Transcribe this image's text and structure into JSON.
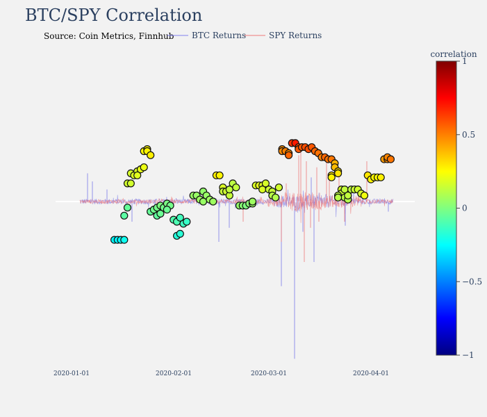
{
  "chart_data": {
    "type": "scatter",
    "title": "BTC/SPY Correlation",
    "annotation": "Source: Coin Metrics, Finnhub",
    "x_ticks": [
      "2020-01-01",
      "2020-02-01",
      "2020-03-01",
      "2020-04-01"
    ],
    "x_range": [
      "2019-12-26",
      "2020-04-10"
    ],
    "y_range": [
      -0.85,
      0.55
    ],
    "colorbar": {
      "title": "correlation",
      "min": -1,
      "max": 1,
      "ticks": [
        1,
        0.5,
        0,
        -0.5,
        -1
      ],
      "tick_labels": [
        "1",
        "0.5",
        "0",
        "−0.5",
        "−1"
      ],
      "colorscale": [
        "#000080",
        "#0000ff",
        "#0080ff",
        "#00ffff",
        "#80ff80",
        "#ffff00",
        "#ff8000",
        "#ff0000",
        "#800000"
      ]
    },
    "series": [
      {
        "name": "BTC Returns",
        "type": "line",
        "color": "#8080ee",
        "description": "high-frequency BTC returns, mostly within +/-0.03, spikes to about -0.78 on 2020-03-12"
      },
      {
        "name": "SPY Returns",
        "type": "line",
        "color": "#ee7a7a",
        "description": "high-frequency SPY returns, spikes up to about +0.28 and down to about -0.30 in March 2020"
      },
      {
        "name": "correlation",
        "type": "markers",
        "color_by": "value",
        "points": [
          [
            "2020-01-14",
            -0.19,
            -0.26
          ],
          [
            "2020-01-15",
            -0.19,
            -0.26
          ],
          [
            "2020-01-16",
            -0.19,
            -0.25
          ],
          [
            "2020-01-17",
            -0.19,
            -0.22
          ],
          [
            "2020-01-17",
            -0.07,
            -0.07
          ],
          [
            "2020-01-18",
            -0.03,
            -0.05
          ],
          [
            "2020-01-18",
            0.09,
            0.16
          ],
          [
            "2020-01-19",
            0.09,
            0.16
          ],
          [
            "2020-01-19",
            0.14,
            0.17
          ],
          [
            "2020-01-20",
            0.13,
            0.18
          ],
          [
            "2020-01-21",
            0.15,
            0.18
          ],
          [
            "2020-01-21",
            0.13,
            0.19
          ],
          [
            "2020-01-22",
            0.16,
            0.2
          ],
          [
            "2020-01-23",
            0.17,
            0.21
          ],
          [
            "2020-01-23",
            0.25,
            0.26
          ],
          [
            "2020-01-24",
            0.26,
            0.26
          ],
          [
            "2020-01-24",
            0.25,
            0.27
          ],
          [
            "2020-01-25",
            0.23,
            0.28
          ],
          [
            "2020-01-25",
            -0.05,
            -0.05
          ],
          [
            "2020-01-26",
            -0.04,
            -0.03
          ],
          [
            "2020-01-27",
            -0.03,
            -0.02
          ],
          [
            "2020-01-28",
            -0.02,
            0.0
          ],
          [
            "2020-01-27",
            -0.07,
            -0.06
          ],
          [
            "2020-01-28",
            -0.06,
            -0.04
          ],
          [
            "2020-01-29",
            -0.03,
            -0.02
          ],
          [
            "2020-01-30",
            -0.01,
            -0.01
          ],
          [
            "2020-01-31",
            -0.02,
            -0.02
          ],
          [
            "2020-01-30",
            -0.04,
            -0.04
          ],
          [
            "2020-02-01",
            -0.09,
            -0.09
          ],
          [
            "2020-02-02",
            -0.1,
            -0.1
          ],
          [
            "2020-02-03",
            -0.08,
            -0.12
          ],
          [
            "2020-02-02",
            -0.17,
            -0.18
          ],
          [
            "2020-02-03",
            -0.16,
            -0.17
          ],
          [
            "2020-02-04",
            -0.11,
            -0.13
          ],
          [
            "2020-02-05",
            -0.1,
            -0.14
          ],
          [
            "2020-02-07",
            0.03,
            0.05
          ],
          [
            "2020-02-08",
            0.03,
            0.05
          ],
          [
            "2020-02-09",
            0.01,
            0.06
          ],
          [
            "2020-02-10",
            0.0,
            0.05
          ],
          [
            "2020-02-10",
            0.05,
            0.04
          ],
          [
            "2020-02-11",
            0.03,
            0.05
          ],
          [
            "2020-02-12",
            0.01,
            0.06
          ],
          [
            "2020-02-13",
            0.0,
            0.06
          ],
          [
            "2020-02-14",
            0.13,
            0.28
          ],
          [
            "2020-02-15",
            0.13,
            0.27
          ],
          [
            "2020-02-16",
            0.07,
            0.18
          ],
          [
            "2020-02-16",
            0.05,
            0.14
          ],
          [
            "2020-02-17",
            0.05,
            0.15
          ],
          [
            "2020-02-18",
            0.03,
            0.14
          ],
          [
            "2020-02-18",
            0.06,
            0.13
          ],
          [
            "2020-02-19",
            0.09,
            0.12
          ],
          [
            "2020-02-20",
            0.07,
            0.13
          ],
          [
            "2020-02-21",
            -0.02,
            0.04
          ],
          [
            "2020-02-22",
            -0.02,
            0.02
          ],
          [
            "2020-02-23",
            -0.02,
            0.0
          ],
          [
            "2020-02-24",
            -0.01,
            0.02
          ],
          [
            "2020-02-25",
            -0.01,
            0.05
          ],
          [
            "2020-02-25",
            0.0,
            0.06
          ],
          [
            "2020-02-26",
            0.08,
            0.18
          ],
          [
            "2020-02-27",
            0.08,
            0.2
          ],
          [
            "2020-02-28",
            0.08,
            0.19
          ],
          [
            "2020-02-28",
            0.06,
            0.18
          ],
          [
            "2020-02-29",
            0.09,
            0.17
          ],
          [
            "2020-03-01",
            0.06,
            0.15
          ],
          [
            "2020-03-02",
            0.05,
            0.14
          ],
          [
            "2020-03-02",
            0.03,
            0.11
          ],
          [
            "2020-03-03",
            0.02,
            0.1
          ],
          [
            "2020-03-04",
            0.07,
            0.16
          ],
          [
            "2020-03-05",
            0.26,
            0.47
          ],
          [
            "2020-03-05",
            0.25,
            0.48
          ],
          [
            "2020-03-06",
            0.25,
            0.5
          ],
          [
            "2020-03-07",
            0.24,
            0.47
          ],
          [
            "2020-03-07",
            0.23,
            0.55
          ],
          [
            "2020-03-08",
            0.29,
            0.65
          ],
          [
            "2020-03-09",
            0.29,
            0.7
          ],
          [
            "2020-03-10",
            0.27,
            0.6
          ],
          [
            "2020-03-10",
            0.26,
            0.58
          ],
          [
            "2020-03-11",
            0.27,
            0.58
          ],
          [
            "2020-03-12",
            0.27,
            0.6
          ],
          [
            "2020-03-13",
            0.26,
            0.6
          ],
          [
            "2020-03-14",
            0.27,
            0.58
          ],
          [
            "2020-03-15",
            0.25,
            0.55
          ],
          [
            "2020-03-16",
            0.24,
            0.53
          ],
          [
            "2020-03-17",
            0.22,
            0.5
          ],
          [
            "2020-03-18",
            0.22,
            0.55
          ],
          [
            "2020-03-19",
            0.21,
            0.53
          ],
          [
            "2020-03-20",
            0.21,
            0.52
          ],
          [
            "2020-03-21",
            0.19,
            0.4
          ],
          [
            "2020-03-21",
            0.17,
            0.38
          ],
          [
            "2020-03-22",
            0.15,
            0.32
          ],
          [
            "2020-03-22",
            0.14,
            0.3
          ],
          [
            "2020-03-20",
            0.13,
            0.3
          ],
          [
            "2020-03-20",
            0.12,
            0.27
          ],
          [
            "2020-03-23",
            0.06,
            0.17
          ],
          [
            "2020-03-23",
            0.04,
            0.15
          ],
          [
            "2020-03-24",
            0.02,
            0.12
          ],
          [
            "2020-03-25",
            0.01,
            0.1
          ],
          [
            "2020-03-25",
            0.03,
            0.13
          ],
          [
            "2020-03-22",
            0.03,
            0.12
          ],
          [
            "2020-03-22",
            0.02,
            0.11
          ],
          [
            "2020-03-24",
            0.06,
            0.13
          ],
          [
            "2020-03-26",
            0.06,
            0.12
          ],
          [
            "2020-03-27",
            0.06,
            0.15
          ],
          [
            "2020-03-28",
            0.06,
            0.16
          ],
          [
            "2020-03-29",
            0.04,
            0.17
          ],
          [
            "2020-03-30",
            0.03,
            0.22
          ],
          [
            "2020-03-31",
            0.13,
            0.3
          ],
          [
            "2020-04-01",
            0.11,
            0.27
          ],
          [
            "2020-04-02",
            0.12,
            0.26
          ],
          [
            "2020-04-03",
            0.12,
            0.25
          ],
          [
            "2020-04-04",
            0.12,
            0.28
          ],
          [
            "2020-04-05",
            0.21,
            0.45
          ],
          [
            "2020-04-06",
            0.21,
            0.47
          ],
          [
            "2020-04-06",
            0.22,
            0.49
          ],
          [
            "2020-04-07",
            0.21,
            0.52
          ]
        ]
      }
    ]
  }
}
